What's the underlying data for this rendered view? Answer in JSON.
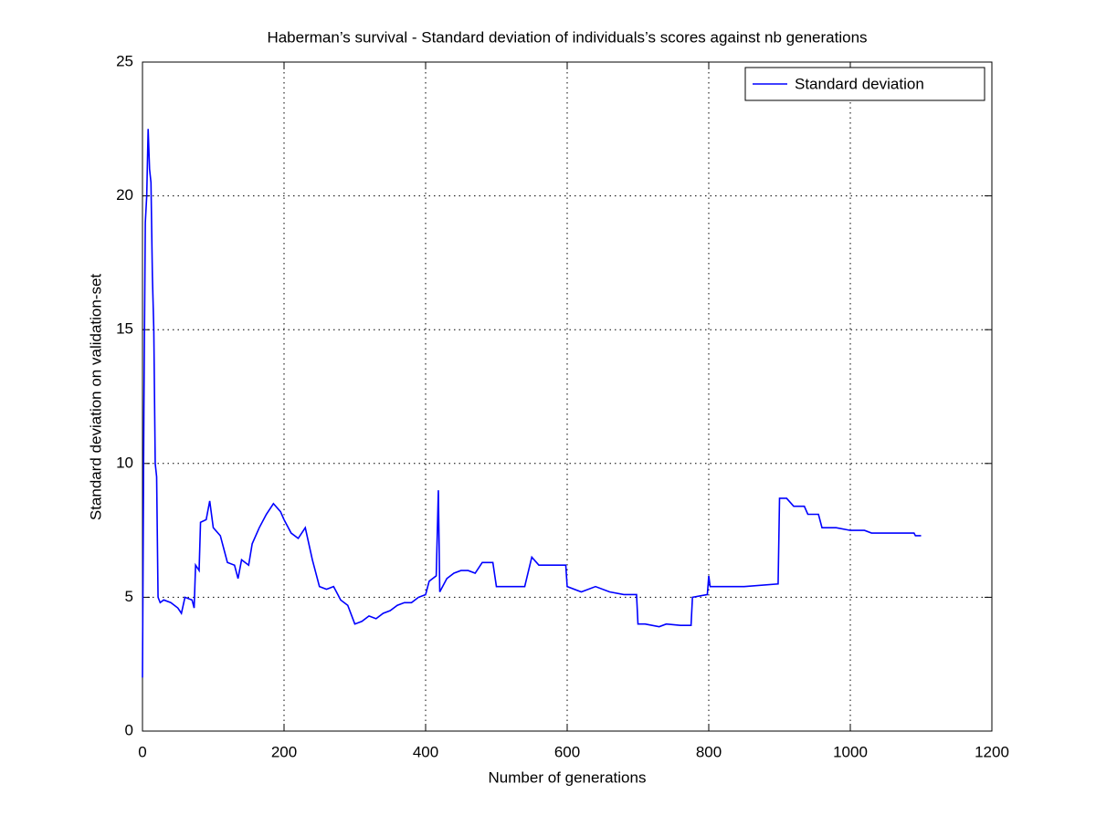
{
  "chart_data": {
    "type": "line",
    "title": "Haberman’s survival - Standard deviation of individuals’s scores against nb generations",
    "xlabel": "Number of generations",
    "ylabel": "Standard deviation on validation-set",
    "x": [
      0,
      2,
      4,
      6,
      8,
      10,
      12,
      14,
      16,
      18,
      20,
      22,
      25,
      30,
      40,
      50,
      55,
      60,
      70,
      73,
      75,
      80,
      82,
      90,
      95,
      100,
      110,
      115,
      120,
      130,
      135,
      140,
      150,
      155,
      165,
      175,
      185,
      195,
      200,
      210,
      220,
      230,
      240,
      250,
      260,
      270,
      280,
      290,
      300,
      310,
      320,
      330,
      340,
      350,
      360,
      370,
      380,
      390,
      400,
      405,
      415,
      418,
      420,
      430,
      440,
      450,
      460,
      470,
      480,
      495,
      500,
      540,
      550,
      560,
      598,
      600,
      620,
      640,
      660,
      680,
      698,
      700,
      710,
      730,
      740,
      760,
      775,
      777,
      798,
      800,
      802,
      850,
      898,
      900,
      910,
      920,
      935,
      940,
      955,
      960,
      980,
      1000,
      1020,
      1030,
      1090,
      1092,
      1100
    ],
    "series": [
      {
        "name": "Standard deviation",
        "color": "#0000ff",
        "values": [
          2,
          12,
          19,
          20,
          22.5,
          21,
          20.5,
          17,
          15,
          10,
          9.5,
          5,
          4.8,
          4.9,
          4.8,
          4.6,
          4.4,
          5,
          4.9,
          4.6,
          6.2,
          6,
          7.8,
          7.9,
          8.6,
          7.6,
          7.3,
          6.8,
          6.3,
          6.2,
          5.7,
          6.4,
          6.2,
          7,
          7.6,
          8.1,
          8.5,
          8.2,
          7.9,
          7.4,
          7.2,
          7.6,
          6.4,
          5.4,
          5.3,
          5.4,
          4.9,
          4.7,
          4,
          4.1,
          4.3,
          4.2,
          4.4,
          4.5,
          4.7,
          4.8,
          4.8,
          5,
          5.1,
          5.6,
          5.8,
          9,
          5.2,
          5.7,
          5.9,
          6,
          6,
          5.9,
          6.3,
          6.3,
          5.4,
          5.4,
          6.5,
          6.2,
          6.2,
          5.4,
          5.2,
          5.4,
          5.2,
          5.1,
          5.1,
          4,
          4,
          3.9,
          4,
          3.95,
          3.95,
          5,
          5.1,
          5.8,
          5.4,
          5.4,
          5.5,
          8.7,
          8.7,
          8.4,
          8.4,
          8.1,
          8.1,
          7.6,
          7.6,
          7.5,
          7.5,
          7.4,
          7.4,
          7.3,
          7.3
        ]
      }
    ],
    "xlim": [
      0,
      1200
    ],
    "xticks": [
      0,
      200,
      400,
      600,
      800,
      1000,
      1200
    ],
    "ylim": [
      0,
      25
    ],
    "yticks": [
      0,
      5,
      10,
      15,
      20,
      25
    ],
    "grid": true,
    "legend": "upper right"
  }
}
